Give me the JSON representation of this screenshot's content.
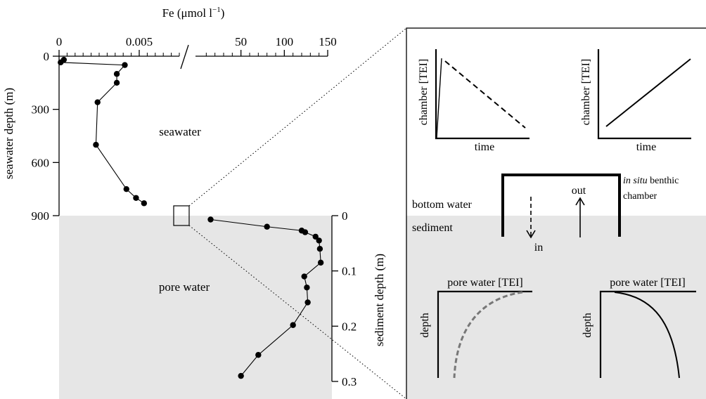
{
  "chart_data": {
    "type": "line",
    "x_axis": {
      "label": "Fe (μmol l⁻¹)",
      "label_main": "Fe (μmol l",
      "label_exp": "−1",
      "label_close": ")",
      "broken": true,
      "low_segment": {
        "range": [
          0,
          0.0075
        ],
        "ticks": [
          0,
          0.005
        ],
        "tick_labels": [
          "0",
          "0.005"
        ]
      },
      "high_segment": {
        "range": [
          0,
          150
        ],
        "ticks": [
          50,
          100,
          150
        ],
        "tick_labels": [
          "50",
          "100",
          "150"
        ]
      }
    },
    "seawater_axis": {
      "label": "seawater depth (m)",
      "range": [
        0,
        900
      ],
      "ticks": [
        0,
        300,
        600,
        900
      ],
      "tick_labels": [
        "0",
        "300",
        "600",
        "900"
      ]
    },
    "sediment_axis": {
      "label": "sediment depth (m)",
      "range": [
        0,
        0.3
      ],
      "ticks": [
        0,
        0.1,
        0.2,
        0.3
      ],
      "tick_labels": [
        "0",
        "0.1",
        "0.2",
        "0.3"
      ]
    },
    "series": [
      {
        "name": "seawater",
        "x_segment": "low",
        "points": [
          {
            "depth": 20,
            "fe": 0.0003
          },
          {
            "depth": 35,
            "fe": 0.0001
          },
          {
            "depth": 50,
            "fe": 0.0041
          },
          {
            "depth": 100,
            "fe": 0.0036
          },
          {
            "depth": 150,
            "fe": 0.0036
          },
          {
            "depth": 260,
            "fe": 0.0024
          },
          {
            "depth": 500,
            "fe": 0.0023
          },
          {
            "depth": 750,
            "fe": 0.0042
          },
          {
            "depth": 800,
            "fe": 0.0048
          },
          {
            "depth": 830,
            "fe": 0.0053
          }
        ]
      },
      {
        "name": "pore water",
        "x_segment": "high",
        "points": [
          {
            "depth": 0.007,
            "fe": 15
          },
          {
            "depth": 0.02,
            "fe": 80
          },
          {
            "depth": 0.027,
            "fe": 120
          },
          {
            "depth": 0.03,
            "fe": 124
          },
          {
            "depth": 0.038,
            "fe": 136
          },
          {
            "depth": 0.045,
            "fe": 140
          },
          {
            "depth": 0.06,
            "fe": 141
          },
          {
            "depth": 0.085,
            "fe": 142
          },
          {
            "depth": 0.11,
            "fe": 123
          },
          {
            "depth": 0.13,
            "fe": 126
          },
          {
            "depth": 0.157,
            "fe": 127
          },
          {
            "depth": 0.198,
            "fe": 110
          },
          {
            "depth": 0.252,
            "fe": 70
          },
          {
            "depth": 0.29,
            "fe": 50
          }
        ]
      }
    ]
  },
  "labels": {
    "seawater": "seawater",
    "pore_water": "pore water",
    "bottom_water": "bottom water",
    "sediment": "sediment",
    "in_situ": "in situ",
    "benthic": "benthic",
    "chamber": "chamber",
    "out": "out",
    "in": "in"
  },
  "inset": {
    "top_left": {
      "ylabel": "chamber [TEI]",
      "xlabel": "time",
      "trend": "decreasing",
      "line_style": "dashed"
    },
    "top_right": {
      "ylabel": "chamber [TEI]",
      "xlabel": "time",
      "trend": "increasing",
      "line_style": "solid"
    },
    "bottom_left": {
      "xlabel": "pore water [TEI]",
      "ylabel": "depth",
      "line_style": "dashed",
      "line_color": "#777777"
    },
    "bottom_right": {
      "xlabel": "pore water [TEI]",
      "ylabel": "depth",
      "line_style": "solid",
      "line_color": "#000000"
    }
  },
  "colors": {
    "sediment_fill": "#e6e6e6",
    "ink": "#000000",
    "gray_curve": "#777777"
  }
}
